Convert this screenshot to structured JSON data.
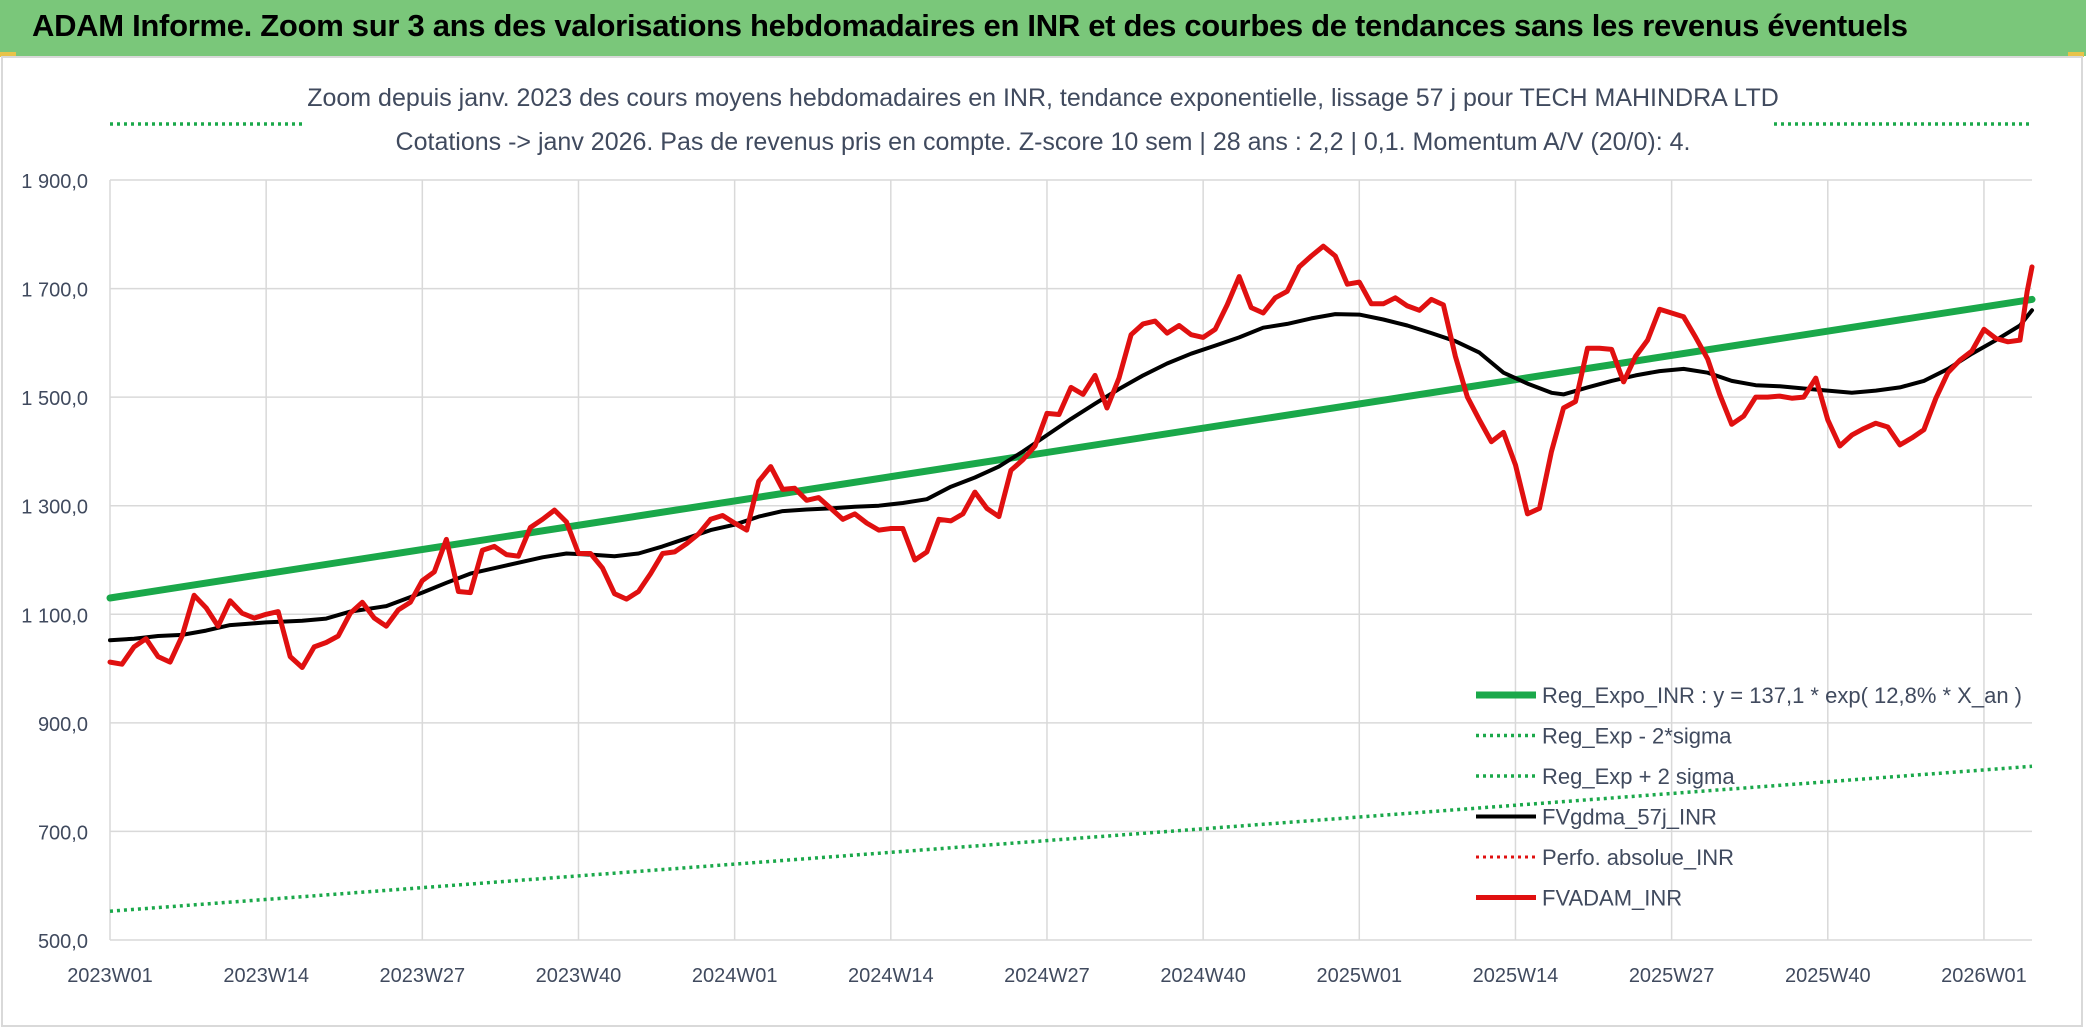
{
  "banner": {
    "title": "ADAM Informe. Zoom sur 3 ans des valorisations hebdomadaires en INR et des courbes de tendances sans les revenus éventuels",
    "background": "#7ac77a"
  },
  "chart_data": {
    "type": "line",
    "title_line1": "Zoom depuis janv. 2023 des cours moyens hebdomadaires en INR, tendance exponentielle, lissage 57 j pour TECH MAHINDRA LTD",
    "title_line2": "Cotations -> janv 2026. Pas de revenus pris en compte. Z-score 10 sem | 28 ans : 2,2 | 0,1. Momentum A/V (20/0): 4.",
    "x_tick_labels": [
      "2023W01",
      "2023W14",
      "2023W27",
      "2023W40",
      "2024W01",
      "2024W14",
      "2024W27",
      "2024W40",
      "2025W01",
      "2025W14",
      "2025W27",
      "2025W40",
      "2026W01"
    ],
    "x_tick_weeks": [
      0,
      13,
      26,
      39,
      52,
      65,
      78,
      91,
      104,
      117,
      130,
      143,
      156
    ],
    "y_tick_labels": [
      "500,0",
      "700,0",
      "900,0",
      "1 100,0",
      "1 300,0",
      "1 500,0",
      "1 700,0",
      "1 900,0"
    ],
    "ylim": [
      500,
      1900
    ],
    "xlim": [
      0,
      160
    ],
    "grid": true,
    "legend_position": "bottom-right",
    "series": [
      {
        "name": "Reg_Expo_INR : y = 137,1 * exp( 12,8% *  X_an )",
        "color": "#1aa84a",
        "style": "solid",
        "width": 7,
        "points": [
          [
            0,
            1130
          ],
          [
            160,
            1680
          ]
        ]
      },
      {
        "name": "Reg_Exp - 2*sigma",
        "color": "#1aa84a",
        "style": "dotted",
        "width": 3.5,
        "points": [
          [
            0,
            553
          ],
          [
            160,
            820
          ]
        ]
      },
      {
        "name": "Reg_Exp + 2 sigma",
        "color": "#1aa84a",
        "style": "dotted",
        "width": 3.5,
        "points": [
          [
            0,
            1990
          ],
          [
            16,
            1990
          ]
        ],
        "points_right": [
          [
            139,
            1990
          ],
          [
            160,
            1990
          ]
        ]
      },
      {
        "name": "FVgdma_57j_INR",
        "color": "#000000",
        "style": "solid",
        "width": 4,
        "points": [
          [
            0,
            1052
          ],
          [
            2,
            1055
          ],
          [
            4,
            1060
          ],
          [
            6,
            1062
          ],
          [
            8,
            1070
          ],
          [
            10,
            1080
          ],
          [
            13,
            1085
          ],
          [
            16,
            1088
          ],
          [
            18,
            1092
          ],
          [
            20,
            1105
          ],
          [
            23,
            1115
          ],
          [
            26,
            1140
          ],
          [
            28,
            1158
          ],
          [
            30,
            1175
          ],
          [
            33,
            1190
          ],
          [
            36,
            1205
          ],
          [
            38,
            1212
          ],
          [
            40,
            1210
          ],
          [
            42,
            1207
          ],
          [
            44,
            1212
          ],
          [
            46,
            1225
          ],
          [
            48,
            1240
          ],
          [
            50,
            1255
          ],
          [
            52,
            1265
          ],
          [
            54,
            1280
          ],
          [
            56,
            1290
          ],
          [
            58,
            1293
          ],
          [
            60,
            1295
          ],
          [
            62,
            1298
          ],
          [
            64,
            1300
          ],
          [
            66,
            1305
          ],
          [
            68,
            1312
          ],
          [
            70,
            1335
          ],
          [
            72,
            1352
          ],
          [
            74,
            1372
          ],
          [
            76,
            1400
          ],
          [
            78,
            1430
          ],
          [
            80,
            1460
          ],
          [
            82,
            1488
          ],
          [
            84,
            1515
          ],
          [
            86,
            1540
          ],
          [
            88,
            1562
          ],
          [
            90,
            1580
          ],
          [
            92,
            1595
          ],
          [
            94,
            1610
          ],
          [
            96,
            1628
          ],
          [
            98,
            1635
          ],
          [
            100,
            1645
          ],
          [
            102,
            1653
          ],
          [
            104,
            1652
          ],
          [
            106,
            1643
          ],
          [
            108,
            1632
          ],
          [
            110,
            1618
          ],
          [
            112,
            1603
          ],
          [
            114,
            1582
          ],
          [
            116,
            1545
          ],
          [
            118,
            1525
          ],
          [
            120,
            1508
          ],
          [
            121,
            1505
          ],
          [
            123,
            1518
          ],
          [
            125,
            1530
          ],
          [
            127,
            1540
          ],
          [
            129,
            1548
          ],
          [
            131,
            1552
          ],
          [
            133,
            1545
          ],
          [
            135,
            1530
          ],
          [
            137,
            1522
          ],
          [
            139,
            1520
          ],
          [
            141,
            1516
          ],
          [
            143,
            1512
          ],
          [
            145,
            1508
          ],
          [
            147,
            1512
          ],
          [
            149,
            1518
          ],
          [
            151,
            1530
          ],
          [
            153,
            1552
          ],
          [
            155,
            1580
          ],
          [
            157,
            1605
          ],
          [
            159,
            1632
          ],
          [
            160,
            1660
          ]
        ]
      },
      {
        "name": "Perfo. absolue_INR",
        "color": "#e01010",
        "style": "dotted",
        "width": 3,
        "points": []
      },
      {
        "name": "FVADAM_INR",
        "color": "#e01010",
        "style": "solid",
        "width": 5,
        "points": [
          [
            0,
            1012
          ],
          [
            1,
            1008
          ],
          [
            2,
            1040
          ],
          [
            3,
            1055
          ],
          [
            4,
            1022
          ],
          [
            5,
            1012
          ],
          [
            6,
            1060
          ],
          [
            7,
            1135
          ],
          [
            8,
            1112
          ],
          [
            9,
            1078
          ],
          [
            10,
            1125
          ],
          [
            11,
            1102
          ],
          [
            12,
            1093
          ],
          [
            13,
            1100
          ],
          [
            14,
            1105
          ],
          [
            15,
            1022
          ],
          [
            16,
            1002
          ],
          [
            17,
            1040
          ],
          [
            18,
            1048
          ],
          [
            19,
            1060
          ],
          [
            20,
            1102
          ],
          [
            21,
            1122
          ],
          [
            22,
            1093
          ],
          [
            23,
            1078
          ],
          [
            24,
            1108
          ],
          [
            25,
            1122
          ],
          [
            26,
            1162
          ],
          [
            27,
            1178
          ],
          [
            28,
            1238
          ],
          [
            29,
            1142
          ],
          [
            30,
            1140
          ],
          [
            31,
            1218
          ],
          [
            32,
            1225
          ],
          [
            33,
            1210
          ],
          [
            34,
            1207
          ],
          [
            35,
            1260
          ],
          [
            36,
            1275
          ],
          [
            37,
            1292
          ],
          [
            38,
            1270
          ],
          [
            39,
            1212
          ],
          [
            40,
            1212
          ],
          [
            41,
            1185
          ],
          [
            42,
            1138
          ],
          [
            43,
            1128
          ],
          [
            44,
            1142
          ],
          [
            45,
            1175
          ],
          [
            46,
            1212
          ],
          [
            47,
            1215
          ],
          [
            48,
            1230
          ],
          [
            49,
            1248
          ],
          [
            50,
            1275
          ],
          [
            51,
            1282
          ],
          [
            52,
            1268
          ],
          [
            53,
            1255
          ],
          [
            54,
            1345
          ],
          [
            55,
            1372
          ],
          [
            56,
            1330
          ],
          [
            57,
            1332
          ],
          [
            58,
            1310
          ],
          [
            59,
            1315
          ],
          [
            60,
            1295
          ],
          [
            61,
            1275
          ],
          [
            62,
            1285
          ],
          [
            63,
            1268
          ],
          [
            64,
            1255
          ],
          [
            65,
            1258
          ],
          [
            66,
            1258
          ],
          [
            67,
            1200
          ],
          [
            68,
            1215
          ],
          [
            69,
            1275
          ],
          [
            70,
            1272
          ],
          [
            71,
            1285
          ],
          [
            72,
            1325
          ],
          [
            73,
            1295
          ],
          [
            74,
            1280
          ],
          [
            75,
            1365
          ],
          [
            76,
            1385
          ],
          [
            77,
            1410
          ],
          [
            78,
            1470
          ],
          [
            79,
            1468
          ],
          [
            80,
            1518
          ],
          [
            81,
            1505
          ],
          [
            82,
            1540
          ],
          [
            83,
            1480
          ],
          [
            84,
            1535
          ],
          [
            85,
            1615
          ],
          [
            86,
            1635
          ],
          [
            87,
            1640
          ],
          [
            88,
            1618
          ],
          [
            89,
            1632
          ],
          [
            90,
            1615
          ],
          [
            91,
            1610
          ],
          [
            92,
            1625
          ],
          [
            93,
            1670
          ],
          [
            94,
            1722
          ],
          [
            95,
            1665
          ],
          [
            96,
            1655
          ],
          [
            97,
            1683
          ],
          [
            98,
            1695
          ],
          [
            99,
            1740
          ],
          [
            100,
            1760
          ],
          [
            101,
            1778
          ],
          [
            102,
            1760
          ],
          [
            103,
            1708
          ],
          [
            104,
            1712
          ],
          [
            105,
            1672
          ],
          [
            106,
            1672
          ],
          [
            107,
            1683
          ],
          [
            108,
            1668
          ],
          [
            109,
            1660
          ],
          [
            110,
            1680
          ],
          [
            111,
            1670
          ],
          [
            112,
            1575
          ],
          [
            113,
            1500
          ],
          [
            114,
            1458
          ],
          [
            115,
            1418
          ],
          [
            116,
            1435
          ],
          [
            117,
            1375
          ],
          [
            118,
            1285
          ],
          [
            119,
            1295
          ],
          [
            120,
            1400
          ],
          [
            121,
            1480
          ],
          [
            122,
            1492
          ],
          [
            123,
            1590
          ],
          [
            124,
            1590
          ],
          [
            125,
            1588
          ],
          [
            126,
            1528
          ],
          [
            127,
            1575
          ],
          [
            128,
            1605
          ],
          [
            129,
            1662
          ],
          [
            130,
            1655
          ],
          [
            131,
            1648
          ],
          [
            132,
            1610
          ],
          [
            133,
            1570
          ],
          [
            134,
            1505
          ],
          [
            135,
            1450
          ],
          [
            136,
            1465
          ],
          [
            137,
            1500
          ],
          [
            138,
            1500
          ],
          [
            139,
            1502
          ],
          [
            140,
            1498
          ],
          [
            141,
            1500
          ],
          [
            142,
            1535
          ],
          [
            143,
            1458
          ],
          [
            144,
            1410
          ],
          [
            145,
            1430
          ],
          [
            146,
            1442
          ],
          [
            147,
            1452
          ],
          [
            148,
            1445
          ],
          [
            149,
            1412
          ],
          [
            150,
            1425
          ],
          [
            151,
            1440
          ],
          [
            152,
            1498
          ],
          [
            153,
            1545
          ],
          [
            154,
            1568
          ],
          [
            155,
            1585
          ],
          [
            156,
            1625
          ],
          [
            157,
            1608
          ],
          [
            158,
            1602
          ],
          [
            159,
            1605
          ],
          [
            159.6,
            1695
          ],
          [
            160,
            1740
          ]
        ]
      }
    ]
  }
}
